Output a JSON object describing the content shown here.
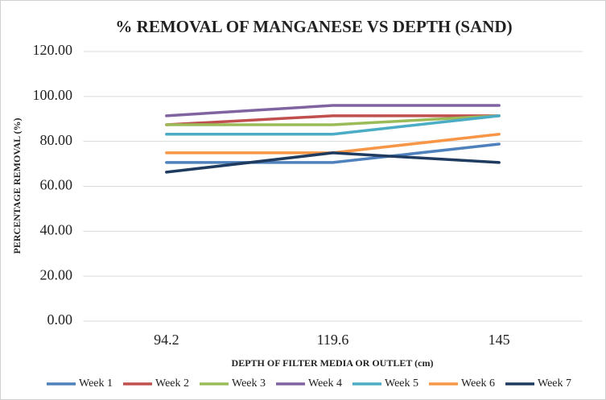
{
  "chart_data": {
    "type": "line",
    "title": "% REMOVAL OF MANGANESE VS DEPTH (SAND)",
    "x_label": "DEPTH OF FILTER MEDIA OR OUTLET (cm)",
    "y_label": "PERCENTAGE REMOVAL (%)",
    "categories": [
      "94.2",
      "119.6",
      "145"
    ],
    "series": [
      {
        "name": "Week 1",
        "color": "#4f81bd",
        "values": [
          70.6,
          70.6,
          78.8
        ]
      },
      {
        "name": "Week 2",
        "color": "#c0504d",
        "values": [
          87.4,
          91.4,
          91.4
        ]
      },
      {
        "name": "Week 3",
        "color": "#9bbb59",
        "values": [
          87.4,
          87.4,
          91.4
        ]
      },
      {
        "name": "Week 4",
        "color": "#8064a2",
        "values": [
          91.4,
          96,
          96
        ]
      },
      {
        "name": "Week 5",
        "color": "#4bacc6",
        "values": [
          83.2,
          83.2,
          91.4
        ]
      },
      {
        "name": "Week 6",
        "color": "#f79646",
        "values": [
          74.9,
          74.9,
          83.2
        ]
      },
      {
        "name": "Week 7",
        "color": "#1f3b5f",
        "values": [
          66.3,
          74.9,
          70.6
        ]
      }
    ],
    "ylim": [
      0,
      120
    ],
    "yticks": [
      {
        "value": 0,
        "label": "0.00"
      },
      {
        "value": 20,
        "label": "20.00"
      },
      {
        "value": 40,
        "label": "40.00"
      },
      {
        "value": 60,
        "label": "60.00"
      },
      {
        "value": 80,
        "label": "80.00"
      },
      {
        "value": 100,
        "label": "100.00"
      },
      {
        "value": 120,
        "label": "120.00"
      }
    ],
    "grid": true,
    "legend": "bottom"
  }
}
